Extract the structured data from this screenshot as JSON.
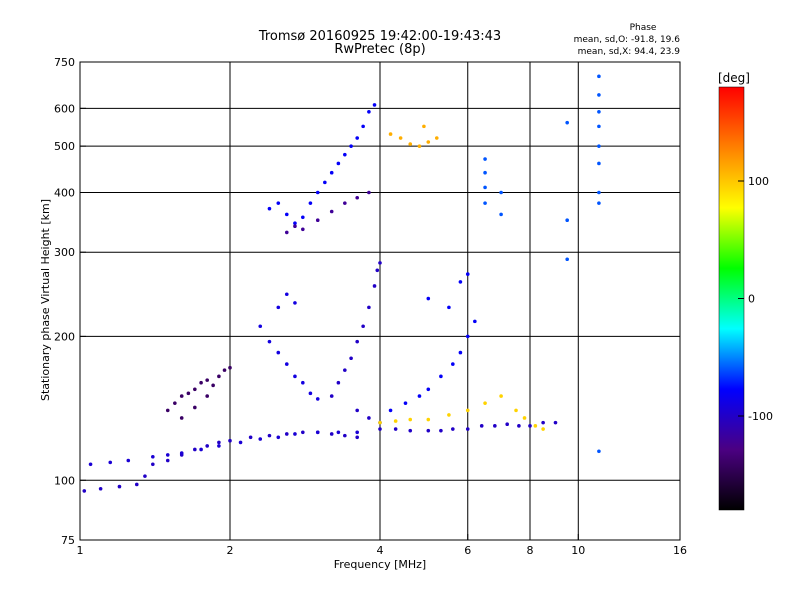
{
  "chart_data": {
    "type": "scatter",
    "title_line1": "Tromsø 20160925 19:42:00-19:43:43",
    "title_line2": "RwPretec (8p)",
    "phase_header": "Phase",
    "phase_o": "mean, sd,O: -91.8, 19.6",
    "phase_x": "mean, sd,X:  94.4, 23.9",
    "xlabel": "Frequency [MHz]",
    "ylabel": "Stationary phase Virtual Height [km]",
    "xscale": "log",
    "yscale": "log",
    "xlim": [
      1,
      16
    ],
    "ylim": [
      75,
      750
    ],
    "xticks": [
      1,
      2,
      4,
      6,
      8,
      10,
      16
    ],
    "yticks": [
      75,
      100,
      200,
      300,
      400,
      500,
      600,
      750
    ],
    "x_gridlines": [
      2,
      4,
      6,
      8,
      10
    ],
    "y_gridlines": [
      100,
      200,
      300,
      400,
      500,
      600
    ],
    "colorbar": {
      "label": "[deg]",
      "range": [
        -180,
        180
      ],
      "ticks": [
        100,
        0,
        -100
      ],
      "colors": [
        "#000000",
        "#4b0082",
        "#0000ff",
        "#00ffff",
        "#00ff00",
        "#ffff00",
        "#ff8000",
        "#ff0000"
      ]
    },
    "series": [
      {
        "role": "lower-layer-o-trace",
        "phase": -100,
        "points": [
          [
            1.02,
            95
          ],
          [
            1.1,
            96
          ],
          [
            1.2,
            97
          ],
          [
            1.3,
            98
          ],
          [
            1.35,
            102
          ],
          [
            1.4,
            108
          ],
          [
            1.5,
            110
          ],
          [
            1.6,
            113
          ],
          [
            1.7,
            116
          ],
          [
            1.8,
            118
          ],
          [
            1.9,
            120
          ],
          [
            2.0,
            121
          ],
          [
            2.2,
            123
          ],
          [
            2.4,
            124
          ],
          [
            2.6,
            125
          ],
          [
            2.8,
            126
          ],
          [
            3.0,
            126
          ],
          [
            3.2,
            125
          ],
          [
            3.4,
            124
          ],
          [
            3.6,
            123
          ]
        ]
      },
      {
        "role": "lower-layer-trace-2",
        "phase": -95,
        "points": [
          [
            1.05,
            108
          ],
          [
            1.15,
            109
          ],
          [
            1.25,
            110
          ],
          [
            1.4,
            112
          ],
          [
            1.5,
            113
          ],
          [
            1.6,
            114
          ],
          [
            1.75,
            116
          ],
          [
            1.9,
            118
          ],
          [
            2.1,
            120
          ],
          [
            2.3,
            122
          ],
          [
            2.5,
            123
          ],
          [
            2.7,
            125
          ],
          [
            3.0,
            126
          ],
          [
            3.3,
            126
          ],
          [
            3.6,
            126
          ]
        ]
      },
      {
        "role": "purple-cluster",
        "phase": -140,
        "points": [
          [
            1.5,
            140
          ],
          [
            1.55,
            145
          ],
          [
            1.6,
            150
          ],
          [
            1.65,
            152
          ],
          [
            1.7,
            155
          ],
          [
            1.75,
            160
          ],
          [
            1.8,
            162
          ],
          [
            1.85,
            158
          ],
          [
            1.9,
            165
          ],
          [
            1.95,
            170
          ],
          [
            2.0,
            172
          ],
          [
            1.6,
            135
          ],
          [
            1.7,
            142
          ],
          [
            1.8,
            150
          ]
        ]
      },
      {
        "role": "ridge-2.5MHz",
        "phase": -90,
        "points": [
          [
            2.3,
            210
          ],
          [
            2.4,
            195
          ],
          [
            2.5,
            185
          ],
          [
            2.6,
            175
          ],
          [
            2.7,
            165
          ],
          [
            2.8,
            160
          ],
          [
            2.9,
            152
          ],
          [
            3.0,
            148
          ],
          [
            2.5,
            230
          ],
          [
            2.6,
            245
          ],
          [
            2.7,
            235
          ]
        ]
      },
      {
        "role": "ridge-3.5MHz",
        "phase": -100,
        "points": [
          [
            3.2,
            150
          ],
          [
            3.3,
            160
          ],
          [
            3.4,
            170
          ],
          [
            3.5,
            180
          ],
          [
            3.6,
            195
          ],
          [
            3.7,
            210
          ],
          [
            3.8,
            230
          ],
          [
            3.9,
            255
          ],
          [
            3.95,
            275
          ],
          [
            4.0,
            285
          ],
          [
            3.6,
            140
          ],
          [
            3.8,
            135
          ],
          [
            4.0,
            132
          ]
        ]
      },
      {
        "role": "F-layer-mid",
        "phase": -80,
        "points": [
          [
            4.2,
            140
          ],
          [
            4.5,
            145
          ],
          [
            4.8,
            150
          ],
          [
            5.0,
            155
          ],
          [
            5.3,
            165
          ],
          [
            5.6,
            175
          ],
          [
            5.8,
            185
          ],
          [
            6.0,
            200
          ],
          [
            6.2,
            215
          ],
          [
            5.5,
            230
          ],
          [
            5.0,
            240
          ],
          [
            5.8,
            260
          ],
          [
            6.0,
            270
          ]
        ]
      },
      {
        "role": "F-layer-lower-band",
        "phase": -100,
        "points": [
          [
            4.0,
            128
          ],
          [
            4.3,
            128
          ],
          [
            4.6,
            127
          ],
          [
            5.0,
            127
          ],
          [
            5.3,
            127
          ],
          [
            5.6,
            128
          ],
          [
            6.0,
            128
          ],
          [
            6.4,
            130
          ],
          [
            6.8,
            130
          ],
          [
            7.2,
            131
          ],
          [
            7.6,
            130
          ],
          [
            8.0,
            130
          ],
          [
            8.5,
            132
          ],
          [
            9.0,
            132
          ]
        ]
      },
      {
        "role": "yellow-x-trace",
        "phase": 95,
        "points": [
          [
            4.0,
            132
          ],
          [
            4.3,
            133
          ],
          [
            4.6,
            134
          ],
          [
            5.0,
            134
          ],
          [
            5.5,
            137
          ],
          [
            6.0,
            140
          ],
          [
            6.5,
            145
          ],
          [
            7.0,
            150
          ],
          [
            7.5,
            140
          ],
          [
            7.8,
            135
          ],
          [
            8.2,
            130
          ],
          [
            8.5,
            128
          ]
        ]
      },
      {
        "role": "upper-echo-cluster",
        "phase": -80,
        "points": [
          [
            2.4,
            370
          ],
          [
            2.5,
            380
          ],
          [
            2.6,
            360
          ],
          [
            2.7,
            345
          ],
          [
            2.8,
            355
          ],
          [
            2.9,
            380
          ],
          [
            3.0,
            400
          ],
          [
            3.1,
            420
          ],
          [
            3.2,
            440
          ],
          [
            3.3,
            460
          ],
          [
            3.4,
            480
          ],
          [
            3.5,
            500
          ],
          [
            3.6,
            520
          ],
          [
            3.7,
            550
          ],
          [
            3.8,
            590
          ],
          [
            3.9,
            610
          ]
        ]
      },
      {
        "role": "upper-echo-low",
        "phase": -120,
        "points": [
          [
            2.6,
            330
          ],
          [
            2.7,
            340
          ],
          [
            2.8,
            335
          ],
          [
            3.0,
            350
          ],
          [
            3.2,
            365
          ],
          [
            3.4,
            380
          ],
          [
            3.6,
            390
          ],
          [
            3.8,
            400
          ]
        ]
      },
      {
        "role": "upper-yellow",
        "phase": 110,
        "points": [
          [
            4.2,
            530
          ],
          [
            4.4,
            520
          ],
          [
            4.6,
            505
          ],
          [
            4.8,
            500
          ],
          [
            5.0,
            510
          ],
          [
            5.2,
            520
          ],
          [
            4.9,
            550
          ]
        ]
      },
      {
        "role": "vertical-streaks",
        "phase": -60,
        "points": [
          [
            6.5,
            470
          ],
          [
            6.5,
            440
          ],
          [
            6.5,
            410
          ],
          [
            6.5,
            380
          ],
          [
            7.0,
            360
          ],
          [
            7.0,
            400
          ],
          [
            9.5,
            560
          ],
          [
            9.5,
            350
          ],
          [
            9.5,
            290
          ],
          [
            11.0,
            700
          ],
          [
            11.0,
            640
          ],
          [
            11.0,
            590
          ],
          [
            11.0,
            550
          ],
          [
            11.0,
            500
          ],
          [
            11.0,
            460
          ],
          [
            11.0,
            400
          ],
          [
            11.0,
            380
          ],
          [
            11.0,
            115
          ]
        ]
      }
    ]
  }
}
